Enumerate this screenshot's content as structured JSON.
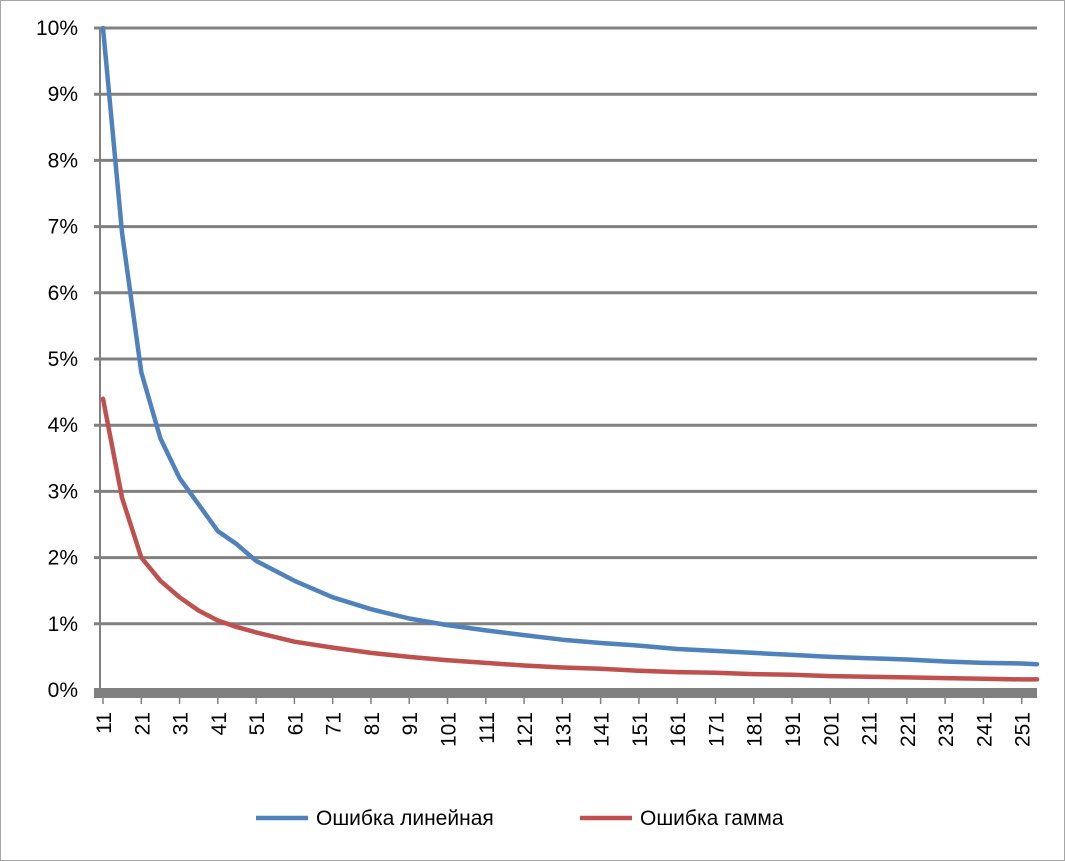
{
  "chart_data": {
    "type": "line",
    "title": "",
    "xlabel": "",
    "ylabel": "",
    "x_start": 11,
    "x_end": 255,
    "x_tick_labels": [
      "11",
      "21",
      "31",
      "41",
      "51",
      "61",
      "71",
      "81",
      "91",
      "101",
      "111",
      "121",
      "131",
      "141",
      "151",
      "161",
      "171",
      "181",
      "191",
      "201",
      "211",
      "221",
      "231",
      "241",
      "251"
    ],
    "y_tick_labels": [
      "0%",
      "1%",
      "2%",
      "3%",
      "4%",
      "5%",
      "6%",
      "7%",
      "8%",
      "9%",
      "10%"
    ],
    "ylim": [
      0,
      10
    ],
    "grid": true,
    "legend_position": "bottom",
    "series": [
      {
        "name": "Ошибка линейная",
        "color": "#4f81bd",
        "x": [
          11,
          16,
          21,
          26,
          31,
          36,
          41,
          46,
          51,
          61,
          71,
          81,
          91,
          101,
          111,
          121,
          131,
          141,
          151,
          161,
          171,
          181,
          191,
          201,
          211,
          221,
          231,
          241,
          251,
          255
        ],
        "values": [
          10.0,
          6.9,
          4.8,
          3.8,
          3.2,
          2.8,
          2.4,
          2.2,
          1.95,
          1.65,
          1.4,
          1.22,
          1.08,
          0.98,
          0.9,
          0.83,
          0.76,
          0.71,
          0.67,
          0.62,
          0.59,
          0.56,
          0.53,
          0.5,
          0.48,
          0.46,
          0.43,
          0.41,
          0.4,
          0.39
        ]
      },
      {
        "name": "Ошибка гамма",
        "color": "#c0504d",
        "x": [
          11,
          16,
          21,
          26,
          31,
          36,
          41,
          46,
          51,
          61,
          71,
          81,
          91,
          101,
          111,
          121,
          131,
          141,
          151,
          161,
          171,
          181,
          191,
          201,
          211,
          221,
          231,
          241,
          251,
          255
        ],
        "values": [
          4.4,
          2.9,
          2.0,
          1.65,
          1.4,
          1.2,
          1.05,
          0.95,
          0.87,
          0.73,
          0.64,
          0.56,
          0.5,
          0.45,
          0.41,
          0.37,
          0.34,
          0.32,
          0.29,
          0.27,
          0.26,
          0.24,
          0.23,
          0.21,
          0.2,
          0.19,
          0.18,
          0.17,
          0.16,
          0.16
        ]
      }
    ]
  }
}
